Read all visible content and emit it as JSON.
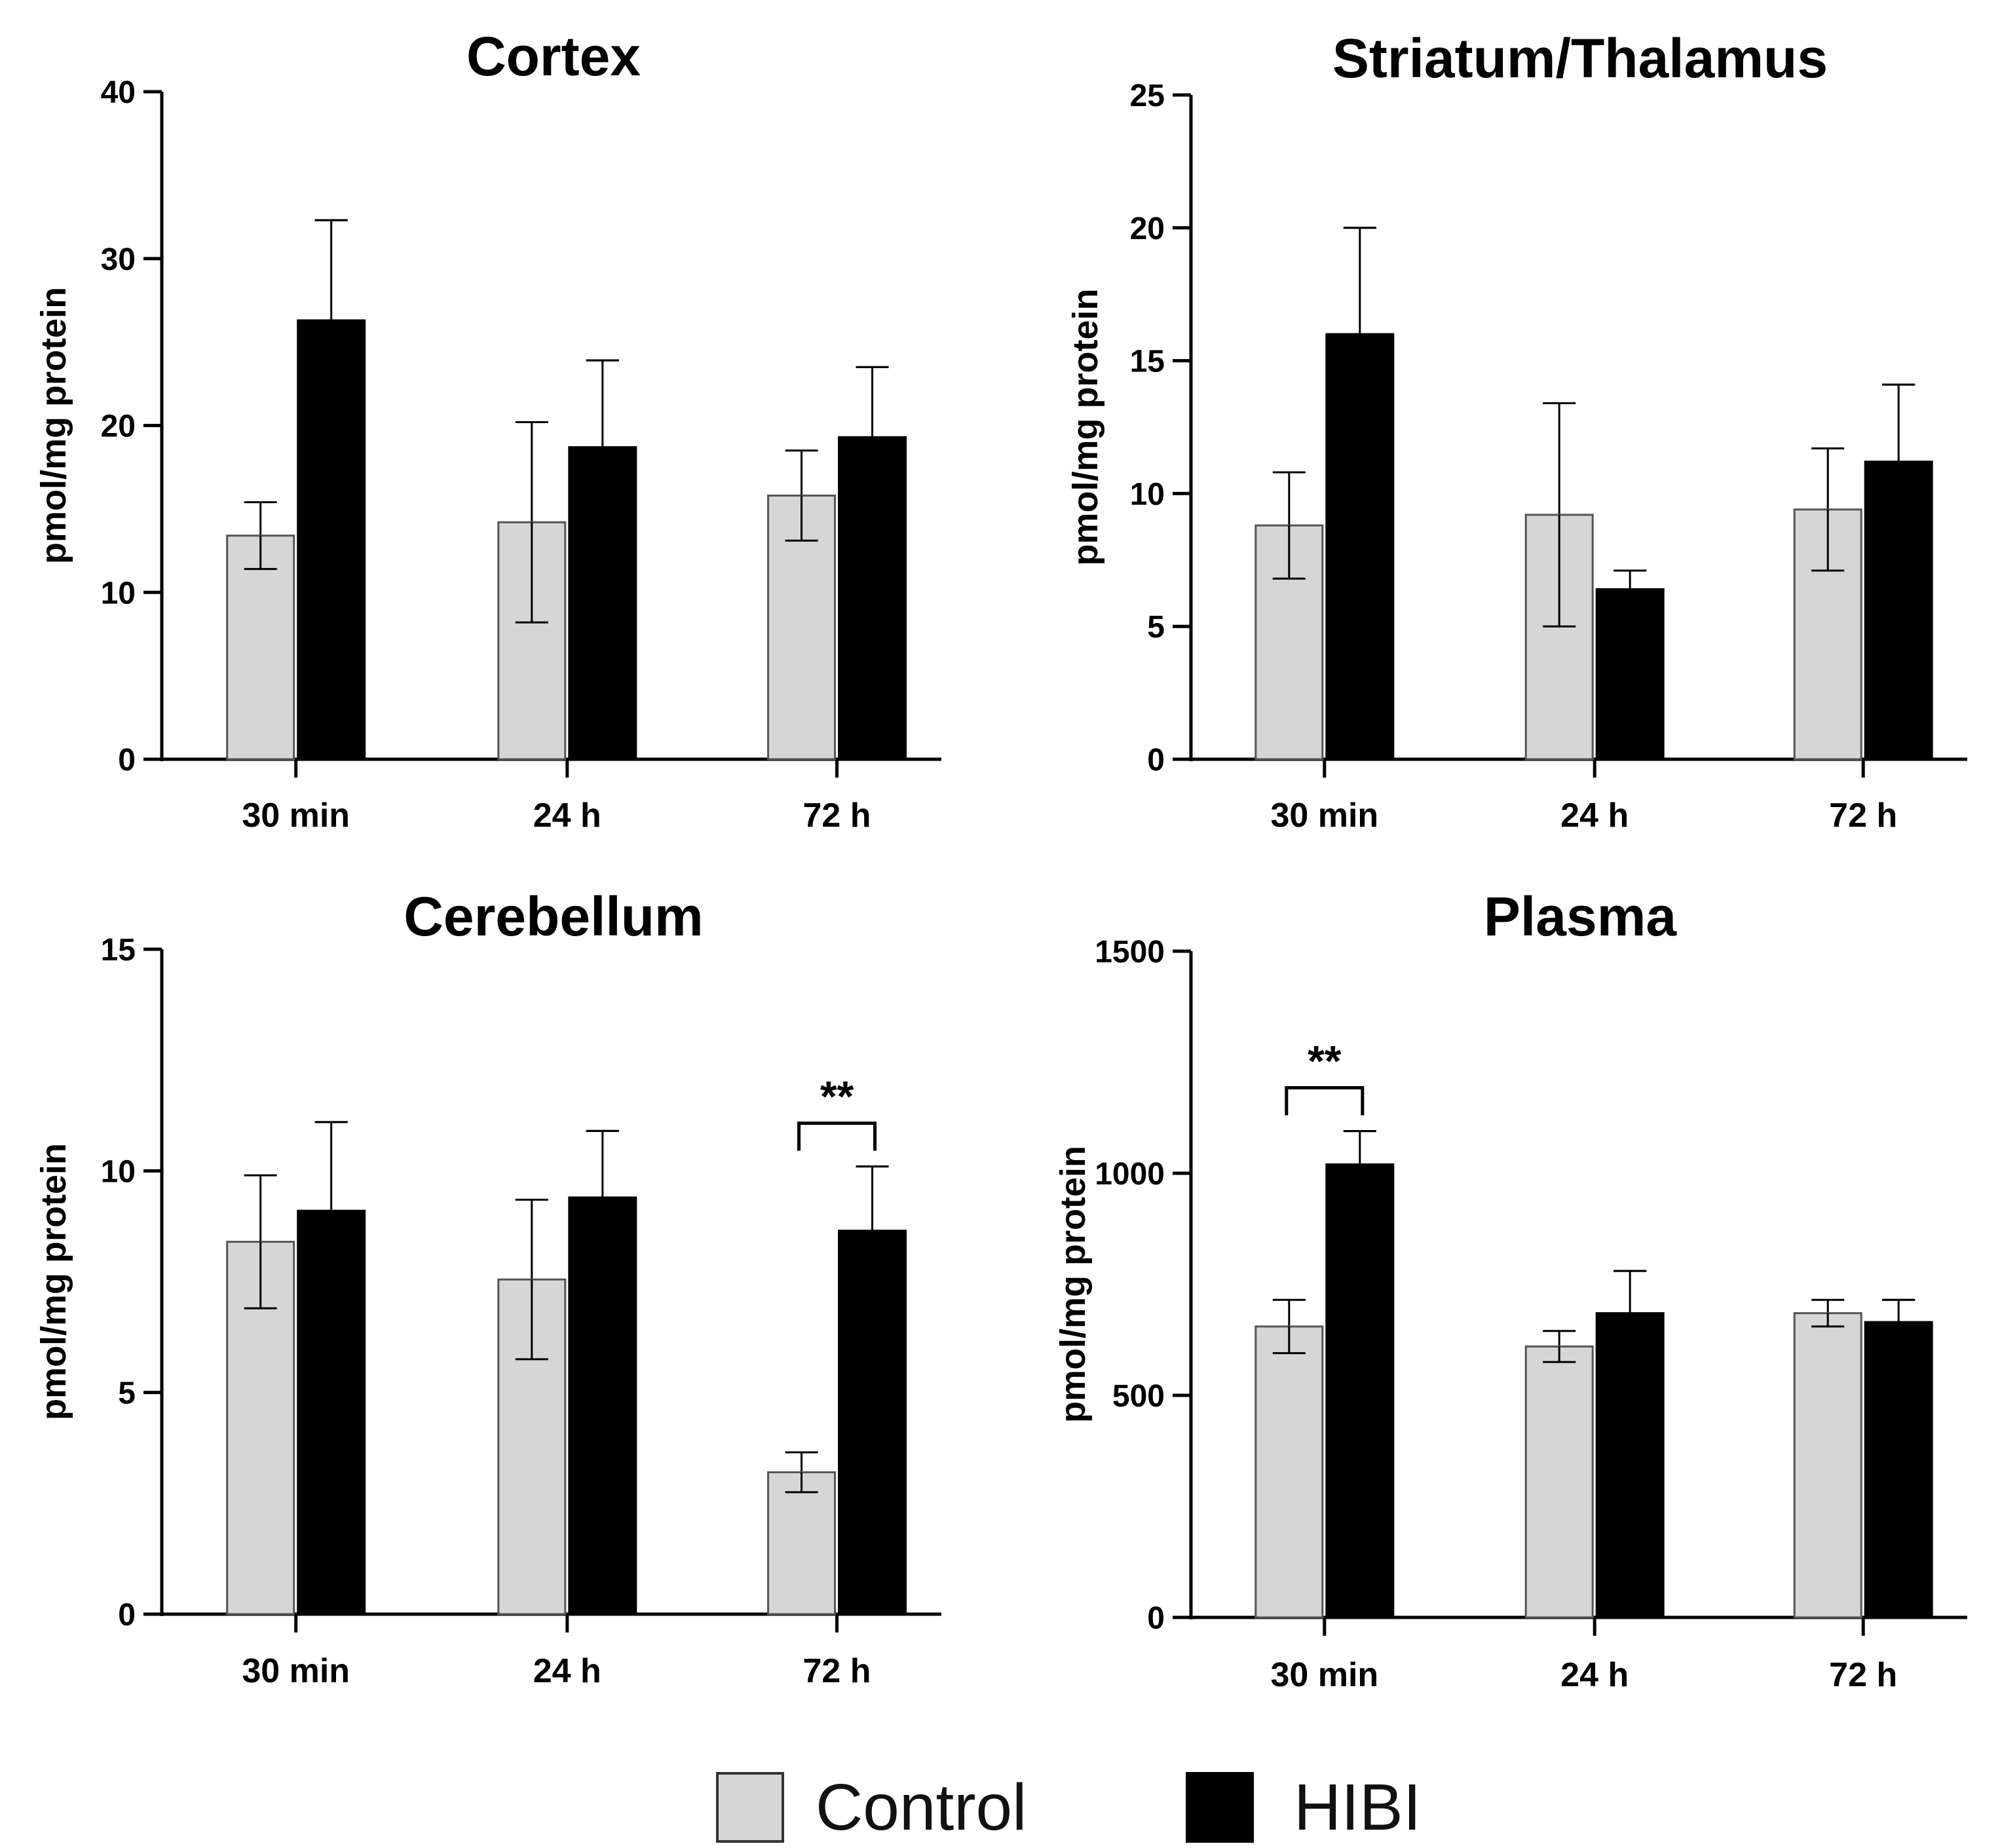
{
  "chart_data": [
    {
      "type": "bar",
      "title": "Cortex",
      "ylabel": "pmol/mg protein",
      "xlabel": "",
      "categories": [
        "30 min",
        "24 h",
        "72 h"
      ],
      "ylim": [
        0,
        40
      ],
      "yticks": [
        0,
        10,
        20,
        30,
        40
      ],
      "series": [
        {
          "name": "Control",
          "values": [
            13.4,
            14.2,
            15.8
          ],
          "errors": [
            2.0,
            6.0,
            2.7
          ]
        },
        {
          "name": "HIBI",
          "values": [
            26.3,
            18.7,
            19.3
          ],
          "errors": [
            6.0,
            5.2,
            4.2
          ]
        }
      ],
      "significance": []
    },
    {
      "type": "bar",
      "title": "Striatum/Thalamus",
      "ylabel": "pmol/mg protein",
      "xlabel": "",
      "categories": [
        "30 min",
        "24 h",
        "72 h"
      ],
      "ylim": [
        0,
        25
      ],
      "yticks": [
        0,
        5,
        10,
        15,
        20,
        25
      ],
      "series": [
        {
          "name": "Control",
          "values": [
            8.8,
            9.2,
            9.4
          ],
          "errors": [
            2.0,
            4.2,
            2.3
          ]
        },
        {
          "name": "HIBI",
          "values": [
            16.0,
            6.4,
            11.2
          ],
          "errors": [
            4.0,
            0.7,
            2.9
          ]
        }
      ],
      "significance": []
    },
    {
      "type": "bar",
      "title": "Cerebellum",
      "ylabel": "pmol/mg protein",
      "xlabel": "",
      "categories": [
        "30 min",
        "24 h",
        "72 h"
      ],
      "ylim": [
        0,
        15
      ],
      "yticks": [
        0,
        5,
        10,
        15
      ],
      "series": [
        {
          "name": "Control",
          "values": [
            8.4,
            7.55,
            3.2
          ],
          "errors": [
            1.5,
            1.8,
            0.45
          ]
        },
        {
          "name": "HIBI",
          "values": [
            9.1,
            9.4,
            8.65
          ],
          "errors": [
            2.0,
            1.5,
            1.45
          ]
        }
      ],
      "significance": [
        {
          "category": "72 h",
          "label": "**"
        }
      ]
    },
    {
      "type": "bar",
      "title": "Plasma",
      "ylabel": "pmol/mg protein",
      "xlabel": "",
      "categories": [
        "30 min",
        "24 h",
        "72 h"
      ],
      "ylim": [
        0,
        1500
      ],
      "yticks": [
        0,
        500,
        1000,
        1500
      ],
      "series": [
        {
          "name": "Control",
          "values": [
            655,
            610,
            685
          ],
          "errors": [
            60,
            35,
            30
          ]
        },
        {
          "name": "HIBI",
          "values": [
            1020,
            685,
            665
          ],
          "errors": [
            75,
            95,
            50
          ]
        }
      ],
      "significance": [
        {
          "category": "30 min",
          "label": "**"
        }
      ]
    }
  ],
  "legend": {
    "placement": "bottom-center",
    "items": [
      {
        "label": "Control",
        "color": "#d6d6d6"
      },
      {
        "label": "HIBI",
        "color": "#000000"
      }
    ]
  },
  "colors": {
    "control": "#d6d6d6",
    "hibi": "#000000",
    "axis": "#000000"
  }
}
